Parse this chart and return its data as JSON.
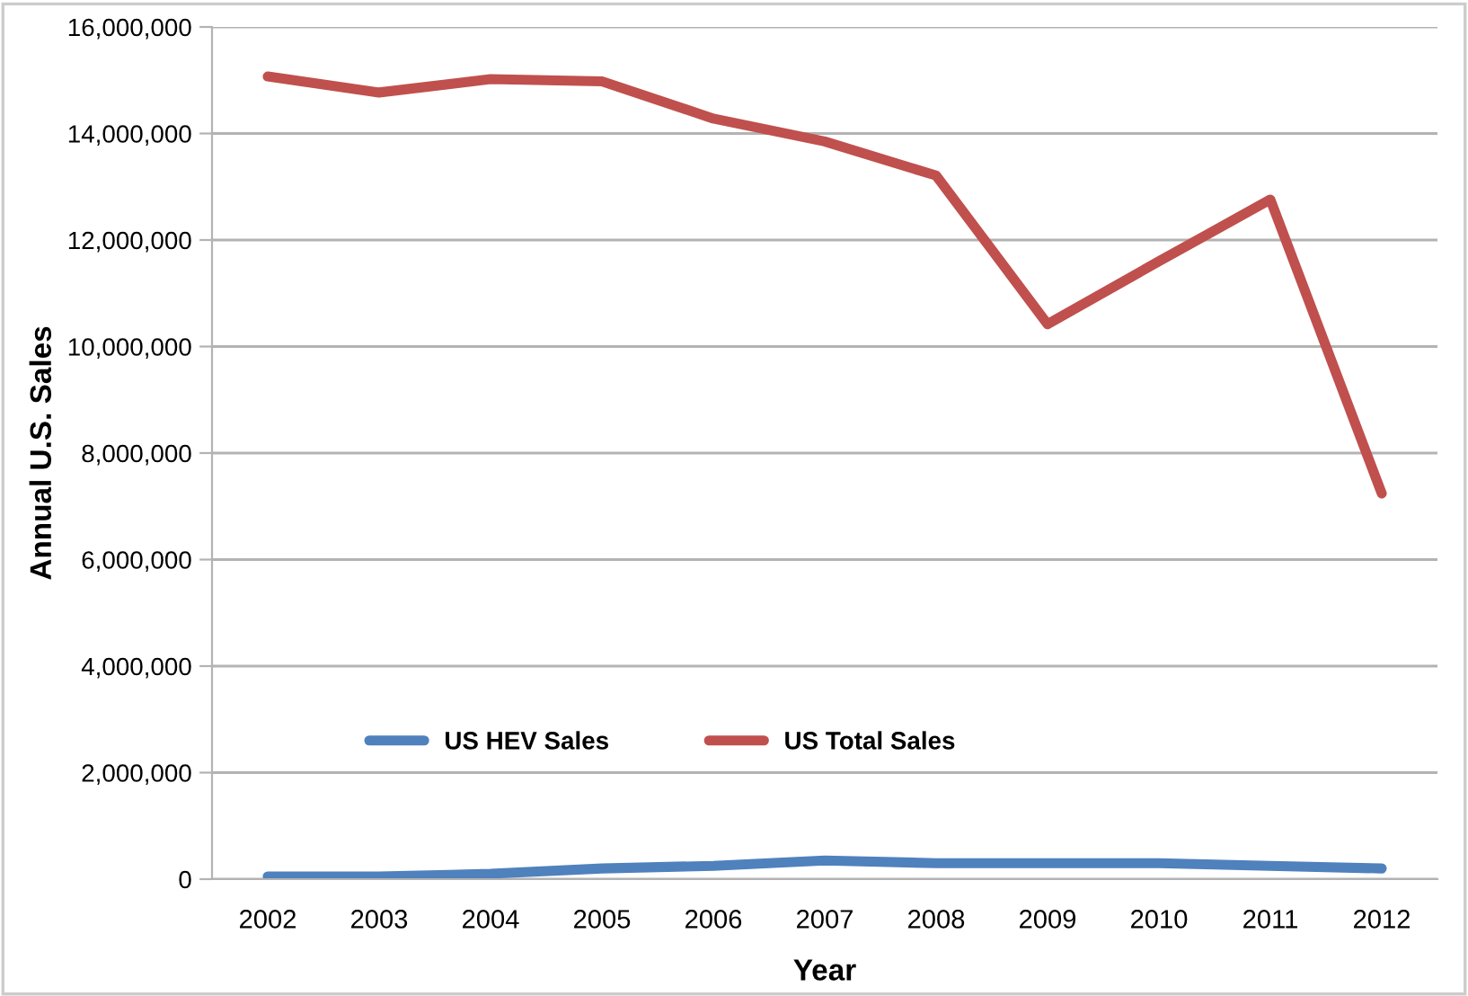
{
  "chart_data": {
    "type": "line",
    "xlabel": "Year",
    "ylabel": "Annual U.S. Sales",
    "categories": [
      "2002",
      "2003",
      "2004",
      "2005",
      "2006",
      "2007",
      "2008",
      "2009",
      "2010",
      "2011",
      "2012"
    ],
    "series": [
      {
        "name": "US HEV Sales",
        "color": "#4f81bd",
        "values": [
          50000,
          50000,
          100000,
          200000,
          250000,
          350000,
          300000,
          300000,
          300000,
          250000,
          200000
        ]
      },
      {
        "name": "US Total Sales",
        "color": "#c0504d",
        "values": [
          15070000,
          14770000,
          15020000,
          14980000,
          14280000,
          13850000,
          13210000,
          10420000,
          11600000,
          12760000,
          7240000
        ]
      }
    ],
    "ylim": [
      0,
      16000000
    ],
    "yticks": [
      {
        "value": 0,
        "label": "0"
      },
      {
        "value": 2000000,
        "label": "2,000,000"
      },
      {
        "value": 4000000,
        "label": "4,000,000"
      },
      {
        "value": 6000000,
        "label": "6,000,000"
      },
      {
        "value": 8000000,
        "label": "8,000,000"
      },
      {
        "value": 10000000,
        "label": "10,000,000"
      },
      {
        "value": 12000000,
        "label": "12,000,000"
      },
      {
        "value": 14000000,
        "label": "14,000,000"
      },
      {
        "value": 16000000,
        "label": "16,000,000"
      }
    ],
    "grid": "y",
    "legend": "bottom left",
    "marker": "none",
    "line_style": "solid"
  }
}
